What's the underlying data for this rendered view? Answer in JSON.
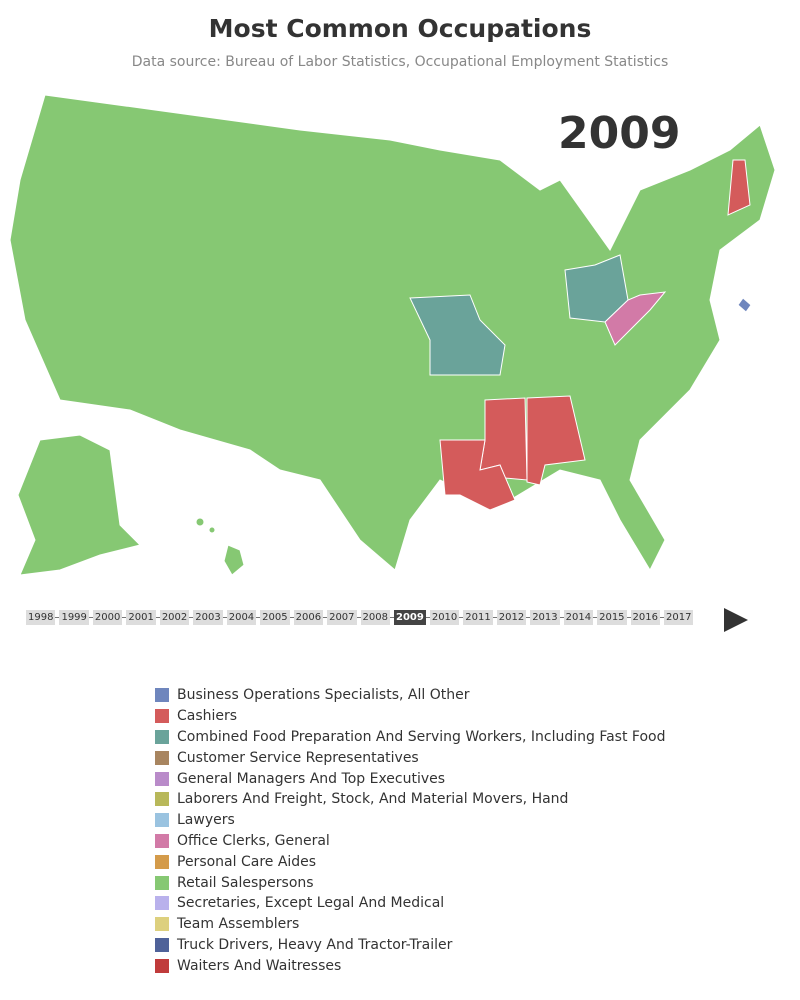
{
  "header": {
    "title": "Most Common Occupations",
    "subtitle": "Data source: Bureau of Labor Statistics, Occupational Employment Statistics"
  },
  "current_year": 2009,
  "timeline": {
    "years": [
      1998,
      1999,
      2000,
      2001,
      2002,
      2003,
      2004,
      2005,
      2006,
      2007,
      2008,
      2009,
      2010,
      2011,
      2012,
      2013,
      2014,
      2015,
      2016,
      2017
    ],
    "selected": 11
  },
  "legend": [
    {
      "name": "Business Operations Specialists, All Other",
      "color": "#6f86bd"
    },
    {
      "name": "Cashiers",
      "color": "#d45b5b"
    },
    {
      "name": "Combined Food Preparation And Serving Workers, Including Fast Food",
      "color": "#6aa39a"
    },
    {
      "name": "Customer Service Representatives",
      "color": "#a88560"
    },
    {
      "name": "General Managers And Top Executives",
      "color": "#b98bc9"
    },
    {
      "name": "Laborers And Freight, Stock, And Material Movers, Hand",
      "color": "#b8b85a"
    },
    {
      "name": "Lawyers",
      "color": "#9ac3e0"
    },
    {
      "name": "Office Clerks, General",
      "color": "#d27aa7"
    },
    {
      "name": "Personal Care Aides",
      "color": "#d49b4a"
    },
    {
      "name": "Retail Salespersons",
      "color": "#86c873"
    },
    {
      "name": "Secretaries, Except Legal And Medical",
      "color": "#b9b1ec"
    },
    {
      "name": "Team Assemblers",
      "color": "#ddd07e"
    },
    {
      "name": "Truck Drivers, Heavy And Tractor-Trailer",
      "color": "#4f6299"
    },
    {
      "name": "Waiters And Waitresses",
      "color": "#c03b3b"
    }
  ]
}
